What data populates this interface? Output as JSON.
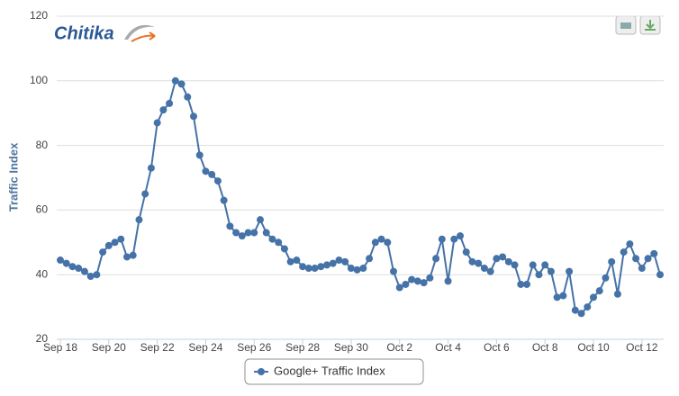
{
  "logo": "Chitika",
  "chart_data": {
    "type": "line",
    "y_label": "Traffic Index",
    "categories": [
      "Sep 18",
      null,
      null,
      null,
      null,
      null,
      null,
      null,
      "Sep 20",
      null,
      null,
      null,
      null,
      null,
      null,
      null,
      "Sep 22",
      null,
      null,
      null,
      null,
      null,
      null,
      null,
      "Sep 24",
      null,
      null,
      null,
      null,
      null,
      null,
      null,
      "Sep 26",
      null,
      null,
      null,
      null,
      null,
      null,
      null,
      "Sep 28",
      null,
      null,
      null,
      null,
      null,
      null,
      null,
      "Sep 30",
      null,
      null,
      null,
      null,
      null,
      null,
      null,
      "Oct 2",
      null,
      null,
      null,
      null,
      null,
      null,
      null,
      "Oct 4",
      null,
      null,
      null,
      null,
      null,
      null,
      null,
      "Oct 6",
      null,
      null,
      null,
      null,
      null,
      null,
      null,
      "Oct 8",
      null,
      null,
      null,
      null,
      null,
      null,
      null,
      "Oct 10",
      null,
      null,
      null,
      null,
      null,
      null,
      null,
      "Oct 12",
      null,
      null,
      null
    ],
    "series": [
      {
        "name": "Google+ Traffic Index",
        "color": "#4572a7",
        "values": [
          44.5,
          43.5,
          42.5,
          42,
          41,
          39.5,
          40,
          47,
          49,
          50,
          51,
          45.5,
          46,
          57,
          65,
          73,
          87,
          91,
          93,
          100,
          99,
          95,
          89,
          77,
          72,
          71,
          69,
          63,
          55,
          53,
          52,
          53,
          53,
          57,
          53,
          51,
          50,
          48,
          44,
          44.5,
          42.5,
          42,
          42,
          42.5,
          43,
          43.5,
          44.5,
          44,
          42,
          41.5,
          42,
          45,
          50,
          51,
          50,
          41,
          36,
          37,
          38.5,
          38,
          37.5,
          39,
          45,
          51,
          38,
          51,
          52,
          47,
          44,
          43.5,
          42,
          41,
          45,
          45.5,
          44,
          43,
          37,
          37,
          43,
          40,
          43,
          41,
          33,
          33.5,
          41,
          29,
          28,
          30,
          33,
          35,
          39,
          44,
          34,
          47,
          49.5,
          45,
          42,
          45,
          46.5,
          40
        ]
      }
    ],
    "ylim": [
      20,
      120
    ],
    "yticks": [
      20,
      40,
      60,
      80,
      100,
      120
    ],
    "grid": true,
    "legend": "bottom"
  }
}
